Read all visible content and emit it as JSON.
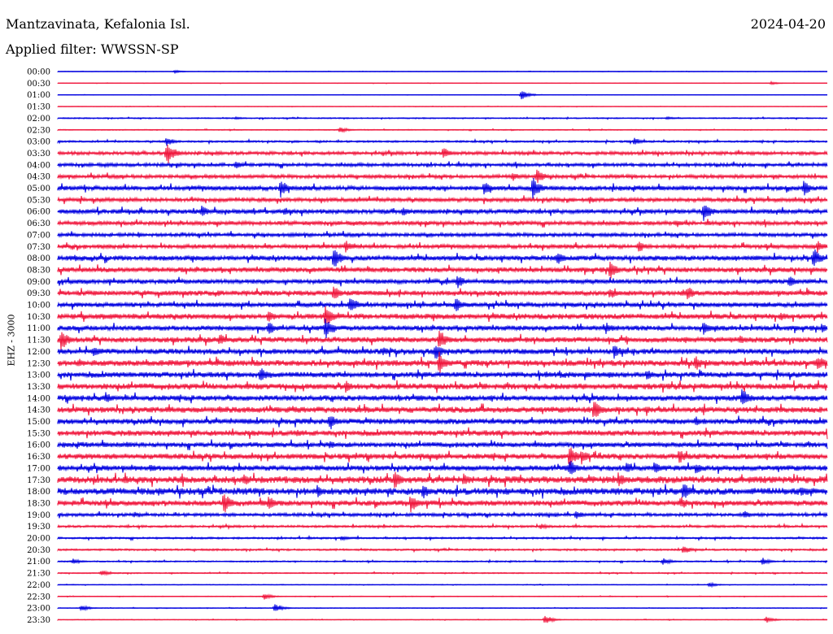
{
  "header": {
    "station": "Mantzavinata, Kefalonia Isl.",
    "date": "2024-04-20",
    "filter": "Applied filter: WWSSN-SP"
  },
  "chart_data": {
    "type": "line",
    "ylabel": "EHZ - 3000",
    "colors": [
      "#0000e0",
      "#f0163c"
    ],
    "time_labels": [
      "00:00",
      "00:30",
      "01:00",
      "01:30",
      "02:00",
      "02:30",
      "03:00",
      "03:30",
      "04:00",
      "04:30",
      "05:00",
      "05:30",
      "06:00",
      "06:30",
      "07:00",
      "07:30",
      "08:00",
      "08:30",
      "09:00",
      "09:30",
      "10:00",
      "10:30",
      "11:00",
      "11:30",
      "12:00",
      "12:30",
      "13:00",
      "13:30",
      "14:00",
      "14:30",
      "15:00",
      "15:30",
      "16:00",
      "16:30",
      "17:00",
      "17:30",
      "18:00",
      "18:30",
      "19:00",
      "19:30",
      "20:00",
      "20:30",
      "21:00",
      "21:30",
      "22:00",
      "22:30",
      "23:00",
      "23:30"
    ],
    "noise_level": [
      0.2,
      0.2,
      0.2,
      0.2,
      0.5,
      0.4,
      0.8,
      1.5,
      1.5,
      1.6,
      2.0,
      1.8,
      2.0,
      1.8,
      1.6,
      1.8,
      2.2,
      2.2,
      2.0,
      2.2,
      2.0,
      2.4,
      2.2,
      2.4,
      2.4,
      2.6,
      2.4,
      2.6,
      2.4,
      2.6,
      2.4,
      2.4,
      2.2,
      2.4,
      2.4,
      3.0,
      3.0,
      2.4,
      1.4,
      1.0,
      0.8,
      0.8,
      0.6,
      0.5,
      0.3,
      0.3,
      0.3,
      0.3
    ],
    "events": [
      [
        [
          215,
          2
        ]
      ],
      [
        [
          948,
          2
        ]
      ],
      [
        [
          641,
          6
        ]
      ],
      [],
      [
        [
          290,
          2
        ],
        [
          820,
          2
        ]
      ],
      [
        [
          418,
          4
        ]
      ],
      [
        [
          205,
          6
        ],
        [
          780,
          5
        ]
      ],
      [
        [
          205,
          16
        ],
        [
          545,
          8
        ]
      ],
      [
        [
          290,
          5
        ]
      ],
      [
        [
          630,
          6
        ],
        [
          660,
          10
        ]
      ],
      [
        [
          345,
          12
        ],
        [
          595,
          10
        ],
        [
          655,
          14
        ],
        [
          988,
          10
        ]
      ],
      [
        [
          725,
          5
        ]
      ],
      [
        [
          248,
          8
        ],
        [
          350,
          6
        ],
        [
          495,
          6
        ],
        [
          865,
          14
        ]
      ],
      [
        [
          830,
          5
        ]
      ],
      [
        [
          170,
          4
        ]
      ],
      [
        [
          425,
          8
        ],
        [
          785,
          8
        ],
        [
          1005,
          8
        ]
      ],
      [
        [
          410,
          14
        ],
        [
          685,
          10
        ],
        [
          1000,
          14
        ]
      ],
      [
        [
          750,
          12
        ]
      ],
      [
        [
          562,
          10
        ],
        [
          970,
          8
        ]
      ],
      [
        [
          410,
          10
        ],
        [
          845,
          10
        ],
        [
          750,
          8
        ]
      ],
      [
        [
          430,
          12
        ],
        [
          560,
          10
        ]
      ],
      [
        [
          400,
          14
        ],
        [
          330,
          8
        ],
        [
          960,
          6
        ]
      ],
      [
        [
          330,
          10
        ],
        [
          400,
          14
        ],
        [
          745,
          8
        ],
        [
          865,
          10
        ],
        [
          1010,
          6
        ]
      ],
      [
        [
          75,
          14
        ],
        [
          270,
          8
        ],
        [
          540,
          14
        ],
        [
          910,
          6
        ]
      ],
      [
        [
          115,
          8
        ],
        [
          535,
          12
        ],
        [
          755,
          10
        ],
        [
          470,
          6
        ]
      ],
      [
        [
          540,
          14
        ],
        [
          855,
          10
        ],
        [
          1005,
          12
        ]
      ],
      [
        [
          320,
          10
        ],
        [
          795,
          8
        ]
      ],
      [
        [
          425,
          8
        ]
      ],
      [
        [
          130,
          8
        ],
        [
          912,
          14
        ]
      ],
      [
        [
          730,
          14
        ],
        [
          270,
          6
        ]
      ],
      [
        [
          405,
          12
        ],
        [
          855,
          6
        ]
      ],
      [
        [
          365,
          5
        ]
      ],
      [
        [
          405,
          6
        ]
      ],
      [
        [
          700,
          14
        ],
        [
          715,
          10
        ],
        [
          835,
          10
        ]
      ],
      [
        [
          185,
          6
        ],
        [
          700,
          12
        ],
        [
          770,
          8
        ],
        [
          805,
          8
        ],
        [
          855,
          8
        ]
      ],
      [
        [
          300,
          8
        ],
        [
          485,
          12
        ],
        [
          570,
          8
        ],
        [
          760,
          10
        ]
      ],
      [
        [
          195,
          6
        ],
        [
          390,
          8
        ],
        [
          520,
          10
        ],
        [
          840,
          12
        ],
        [
          985,
          8
        ]
      ],
      [
        [
          275,
          14
        ],
        [
          330,
          10
        ],
        [
          505,
          12
        ],
        [
          838,
          8
        ]
      ],
      [
        [
          165,
          4
        ],
        [
          708,
          6
        ],
        [
          915,
          5
        ]
      ],
      [
        [
          665,
          4
        ]
      ],
      [
        [
          420,
          3
        ]
      ],
      [
        [
          840,
          6
        ]
      ],
      [
        [
          90,
          4
        ],
        [
          815,
          5
        ],
        [
          937,
          5
        ]
      ],
      [
        [
          125,
          4
        ]
      ],
      [
        [
          872,
          3
        ]
      ],
      [
        [
          325,
          4
        ]
      ],
      [
        [
          100,
          4
        ],
        [
          338,
          6
        ]
      ],
      [
        [
          670,
          6
        ],
        [
          942,
          4
        ]
      ]
    ]
  }
}
